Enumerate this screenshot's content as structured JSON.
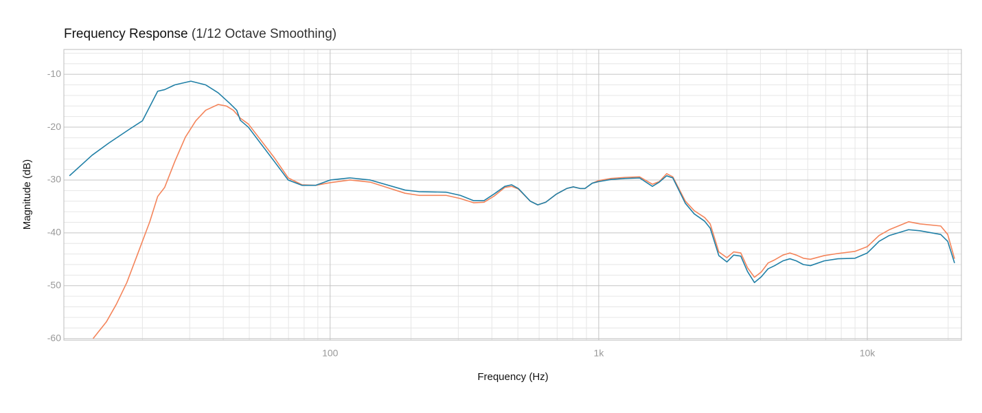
{
  "chart_data": {
    "type": "line",
    "title": "Frequency Response",
    "subtitle": "(1/12 Octave Smoothing)",
    "xlabel": "Frequency (Hz)",
    "ylabel": "Magnitude (dB)",
    "xscale": "log",
    "xlim": [
      10.2,
      22400
    ],
    "ylim": [
      -60.3,
      -5.3
    ],
    "xticks": [
      100,
      {
        "value": 1000,
        "label": "1k"
      },
      {
        "value": 10000,
        "label": "10k"
      }
    ],
    "yticks": [
      -60,
      -50,
      -40,
      -30,
      -20,
      -10
    ],
    "xminor": [
      20,
      30,
      40,
      50,
      60,
      70,
      80,
      90,
      200,
      300,
      400,
      500,
      600,
      700,
      800,
      900,
      2000,
      3000,
      4000,
      5000,
      6000,
      7000,
      8000,
      9000,
      20000
    ],
    "yminor": [
      -58,
      -56,
      -54,
      -52,
      -48,
      -46,
      -44,
      -42,
      -38,
      -36,
      -34,
      -32,
      -28,
      -26,
      -24,
      -22,
      -18,
      -16,
      -14,
      -12,
      -8,
      -6
    ],
    "grid": true,
    "series": [
      {
        "color": "#1f7fa6",
        "x": [
          10.7,
          13,
          15,
          18,
          20,
          22.8,
          24.2,
          26.4,
          30.3,
          34.4,
          38.3,
          42.3,
          44.9,
          46.3,
          49.6,
          62,
          69.8,
          78.5,
          88.4,
          100,
          118.6,
          141,
          190,
          214,
          270,
          305,
          342,
          374,
          409,
          447,
          474,
          502,
          556,
          593,
          635,
          694,
          760,
          804,
          852,
          889,
          946,
          1000,
          1111,
          1253,
          1419,
          1584,
          1680,
          1790,
          1887,
          2101,
          2267,
          2480,
          2600,
          2800,
          3000,
          3180,
          3380,
          3580,
          3800,
          4030,
          4270,
          4520,
          4850,
          5150,
          5440,
          5780,
          6140,
          6910,
          7770,
          9000,
          10000,
          11060,
          12070,
          14240,
          15700,
          18760,
          19920,
          21120
        ],
        "values": [
          -29.2,
          -25.3,
          -23.0,
          -20.3,
          -18.8,
          -13.2,
          -12.9,
          -12.0,
          -11.3,
          -12.0,
          -13.5,
          -15.5,
          -16.8,
          -18.7,
          -20.0,
          -26.5,
          -30.0,
          -31.0,
          -31.0,
          -30.0,
          -29.6,
          -30.0,
          -31.9,
          -32.2,
          -32.3,
          -32.9,
          -33.9,
          -33.9,
          -32.6,
          -31.2,
          -30.9,
          -31.6,
          -34.0,
          -34.7,
          -34.2,
          -32.7,
          -31.6,
          -31.3,
          -31.6,
          -31.6,
          -30.6,
          -30.3,
          -29.9,
          -29.7,
          -29.6,
          -31.2,
          -30.4,
          -29.2,
          -29.6,
          -34.4,
          -36.4,
          -37.8,
          -39.1,
          -44.3,
          -45.5,
          -44.2,
          -44.4,
          -47.3,
          -49.4,
          -48.3,
          -46.8,
          -46.2,
          -45.3,
          -44.9,
          -45.3,
          -46.0,
          -46.2,
          -45.3,
          -44.9,
          -44.8,
          -43.8,
          -41.6,
          -40.5,
          -39.4,
          -39.6,
          -40.3,
          -41.6,
          -45.7
        ]
      },
      {
        "color": "#f4845a",
        "x": [
          13.1,
          14.7,
          16.0,
          17.5,
          19.1,
          21.3,
          22.8,
          24.2,
          26.4,
          28.9,
          31.6,
          34.4,
          38.3,
          41.1,
          43.6,
          46.3,
          49.6,
          62,
          69.8,
          78.5,
          88.4,
          100,
          118.6,
          141,
          190,
          214,
          270,
          305,
          342,
          374,
          409,
          447,
          474,
          502,
          556,
          593,
          635,
          694,
          760,
          804,
          852,
          889,
          946,
          1000,
          1111,
          1253,
          1419,
          1584,
          1680,
          1790,
          1887,
          2101,
          2267,
          2480,
          2600,
          2800,
          3000,
          3180,
          3380,
          3580,
          3800,
          4030,
          4270,
          4520,
          4850,
          5150,
          5440,
          5780,
          6140,
          6910,
          7770,
          9000,
          10000,
          11060,
          12070,
          14240,
          15700,
          18760,
          19920,
          21120
        ],
        "values": [
          -60.0,
          -56.8,
          -53.5,
          -49.4,
          -44.3,
          -37.9,
          -33.1,
          -31.4,
          -26.5,
          -21.9,
          -18.8,
          -16.8,
          -15.7,
          -16.0,
          -16.8,
          -18.3,
          -19.4,
          -25.8,
          -29.6,
          -30.9,
          -31.0,
          -30.5,
          -30.0,
          -30.4,
          -32.5,
          -32.9,
          -32.9,
          -33.5,
          -34.3,
          -34.2,
          -33.0,
          -31.4,
          -31.2,
          -31.7,
          -34.0,
          -34.7,
          -34.2,
          -32.7,
          -31.6,
          -31.3,
          -31.6,
          -31.6,
          -30.6,
          -30.1,
          -29.7,
          -29.5,
          -29.4,
          -30.8,
          -30.3,
          -28.8,
          -29.4,
          -34.0,
          -35.8,
          -37.1,
          -38.3,
          -43.6,
          -44.7,
          -43.6,
          -43.8,
          -46.6,
          -48.4,
          -47.4,
          -45.7,
          -45.1,
          -44.2,
          -43.8,
          -44.2,
          -44.8,
          -45.0,
          -44.3,
          -43.9,
          -43.5,
          -42.6,
          -40.5,
          -39.4,
          -37.9,
          -38.3,
          -38.7,
          -40.3,
          -44.9
        ]
      }
    ]
  }
}
